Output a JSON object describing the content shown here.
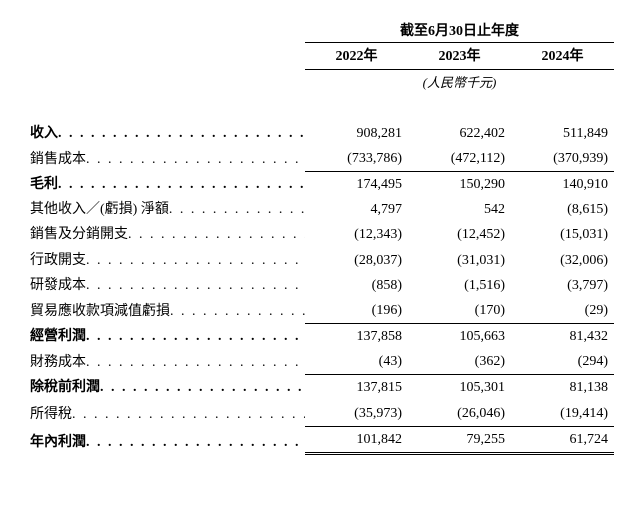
{
  "header": {
    "title": "截至6月30日止年度",
    "years": [
      "2022年",
      "2023年",
      "2024年"
    ],
    "unit": "(人民幣千元)"
  },
  "rows": [
    {
      "label": "收入",
      "bold": true,
      "y2022": "908,281",
      "y2023": "622,402",
      "y2024": "511,849",
      "border": ""
    },
    {
      "label": "銷售成本",
      "bold": false,
      "y2022": "(733,786)",
      "y2023": "(472,112)",
      "y2024": "(370,939)",
      "border": "underline-single"
    },
    {
      "label": "毛利",
      "bold": true,
      "y2022": "174,495",
      "y2023": "150,290",
      "y2024": "140,910",
      "border": ""
    },
    {
      "label": "其他收入／(虧損) 淨額",
      "bold": false,
      "y2022": "4,797",
      "y2023": "542",
      "y2024": "(8,615)",
      "border": ""
    },
    {
      "label": "銷售及分銷開支",
      "bold": false,
      "y2022": "(12,343)",
      "y2023": "(12,452)",
      "y2024": "(15,031)",
      "border": ""
    },
    {
      "label": "行政開支",
      "bold": false,
      "y2022": "(28,037)",
      "y2023": "(31,031)",
      "y2024": "(32,006)",
      "border": ""
    },
    {
      "label": "研發成本",
      "bold": false,
      "y2022": "(858)",
      "y2023": "(1,516)",
      "y2024": "(3,797)",
      "border": ""
    },
    {
      "label": "貿易應收款項減值虧損",
      "bold": false,
      "y2022": "(196)",
      "y2023": "(170)",
      "y2024": "(29)",
      "border": "underline-single"
    },
    {
      "label": "經營利潤",
      "bold": true,
      "y2022": "137,858",
      "y2023": "105,663",
      "y2024": "81,432",
      "border": ""
    },
    {
      "label": "財務成本",
      "bold": false,
      "y2022": "(43)",
      "y2023": "(362)",
      "y2024": "(294)",
      "border": "underline-single"
    },
    {
      "label": "除稅前利潤",
      "bold": true,
      "y2022": "137,815",
      "y2023": "105,301",
      "y2024": "81,138",
      "border": ""
    },
    {
      "label": "所得稅",
      "bold": false,
      "y2022": "(35,973)",
      "y2023": "(26,046)",
      "y2024": "(19,414)",
      "border": "underline-single"
    },
    {
      "label": "年內利潤",
      "bold": true,
      "y2022": "101,842",
      "y2023": "79,255",
      "y2024": "61,724",
      "border": "underline-double"
    }
  ],
  "colors": {
    "text": "#000000",
    "background": "#ffffff",
    "border": "#000000"
  }
}
